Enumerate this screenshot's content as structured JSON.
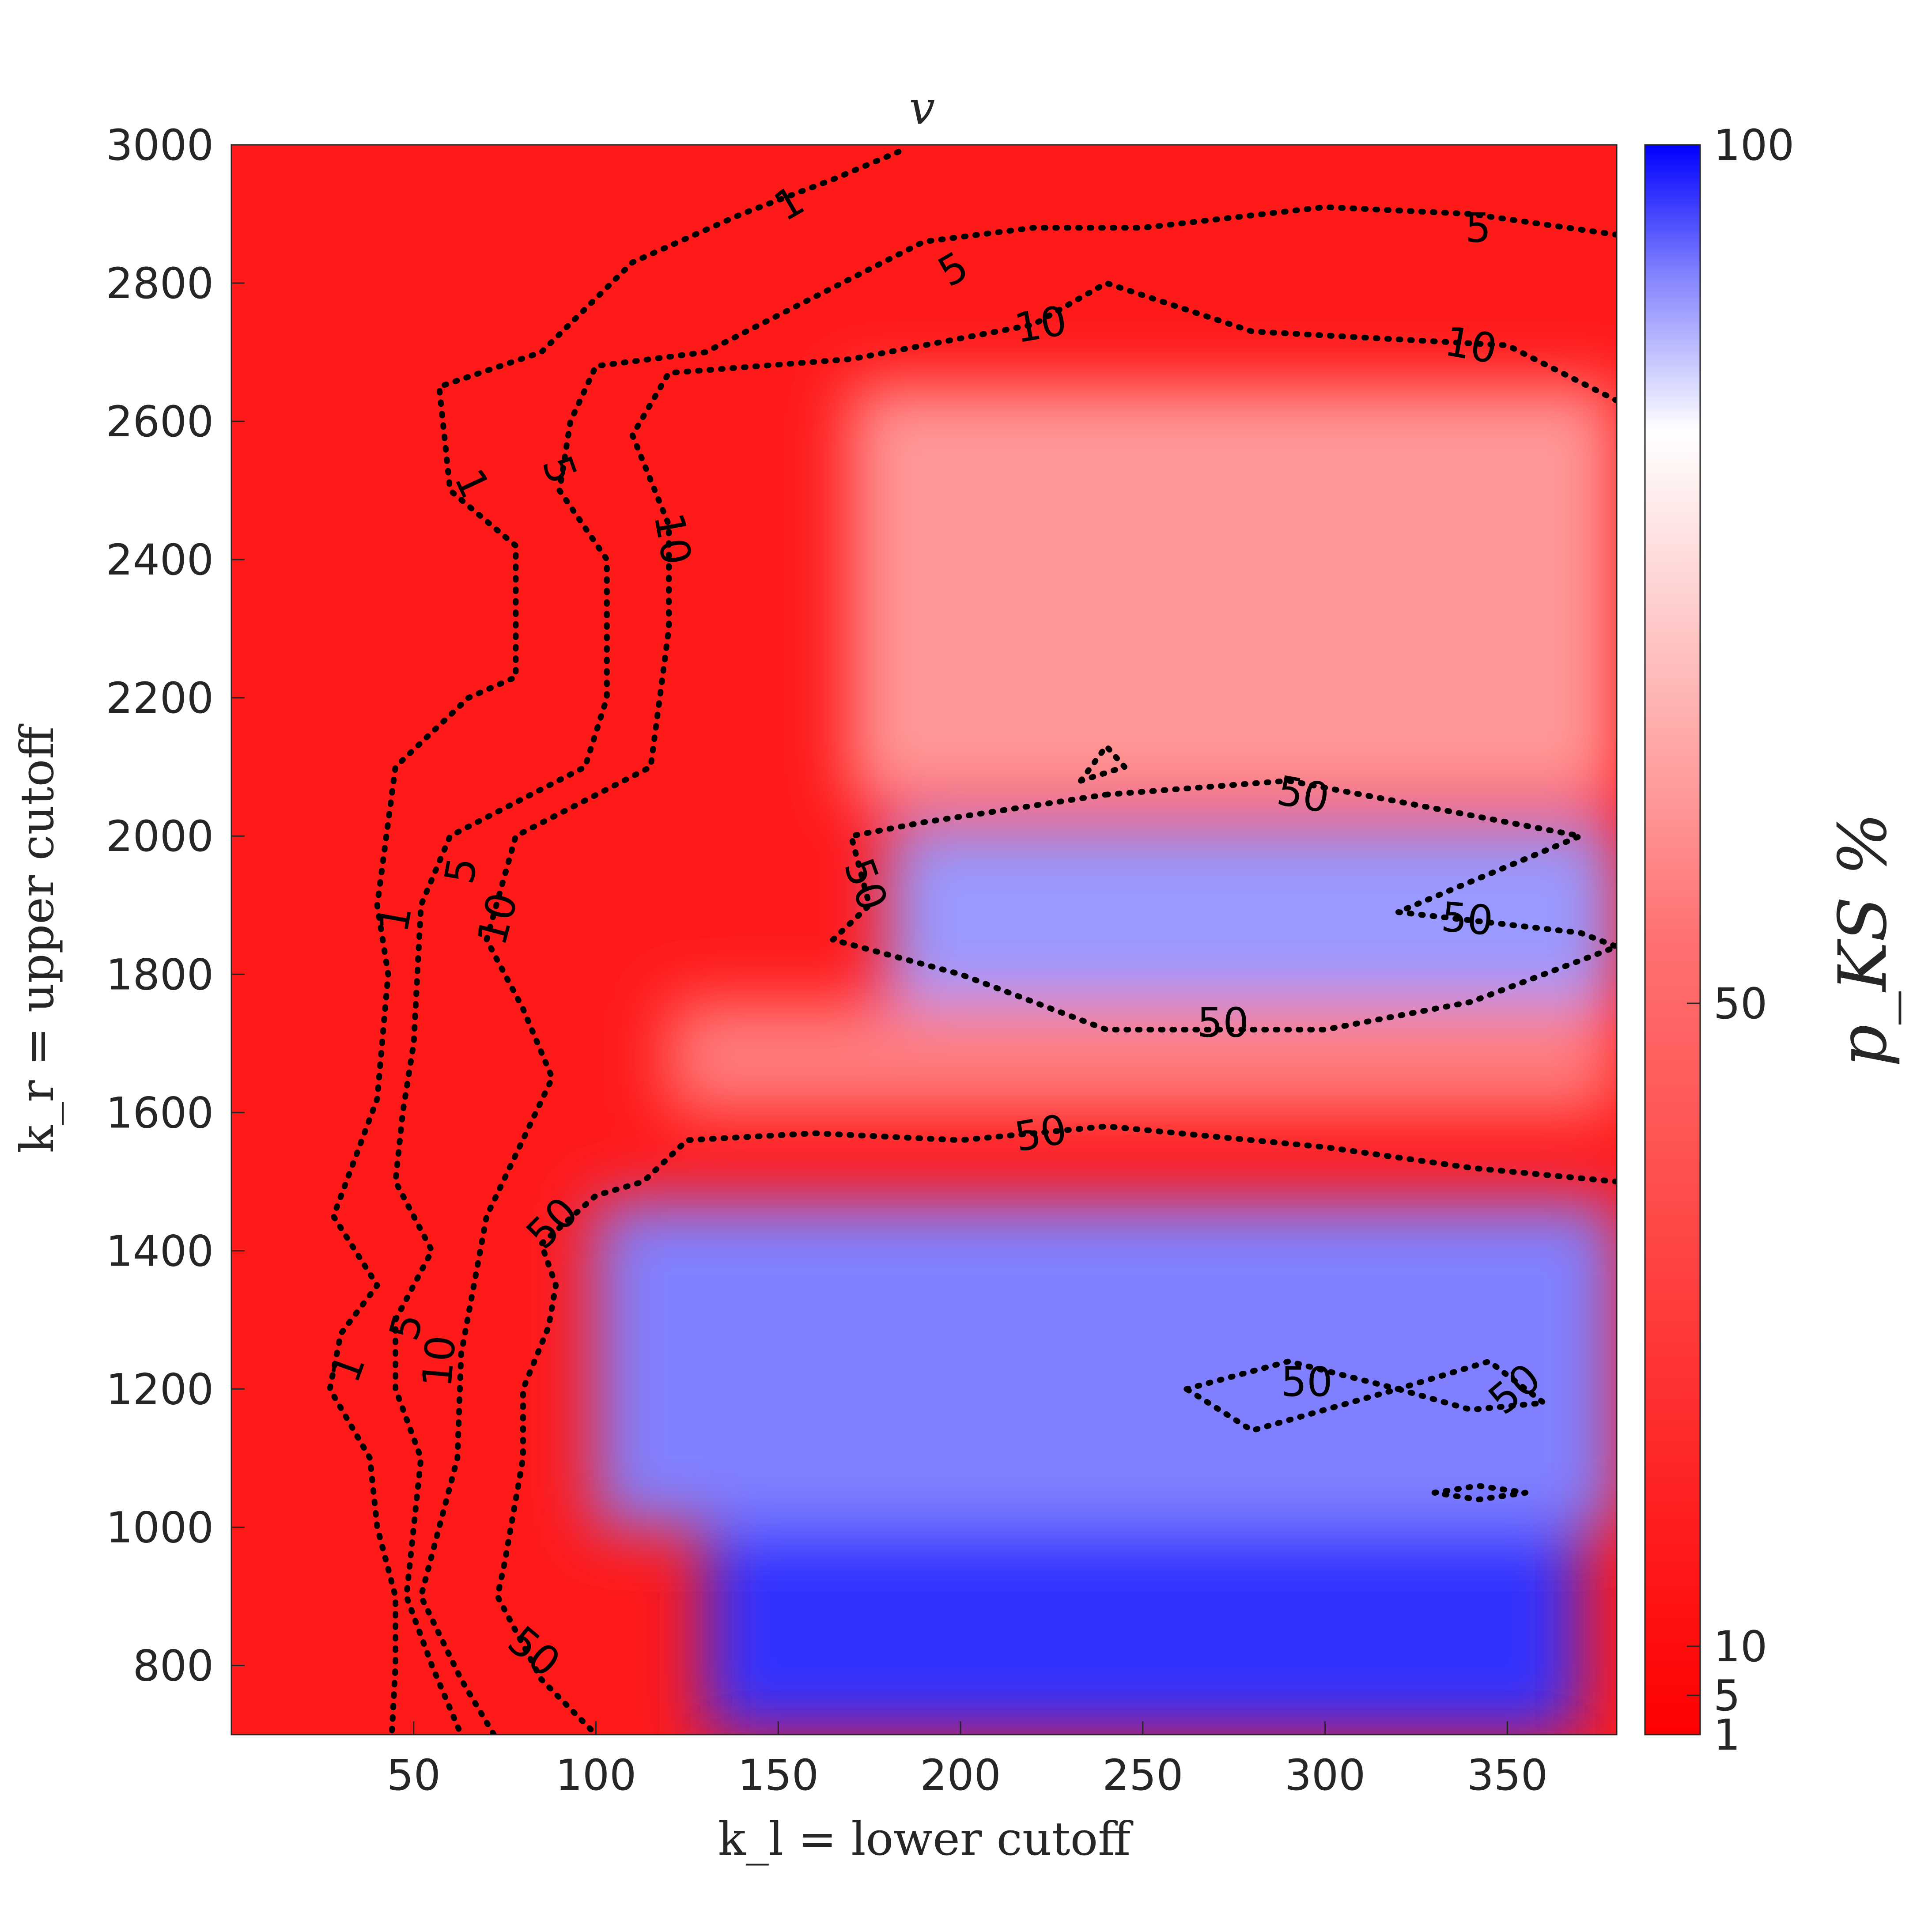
{
  "chart_data": {
    "type": "heatmap",
    "title": "v",
    "xlabel": "k_l = lower cutoff",
    "ylabel": "k_r = upper cutoff",
    "colorbar_label": "p_KS %",
    "xlim": [
      0,
      380
    ],
    "ylim": [
      700,
      3000
    ],
    "x_ticks": [
      50,
      100,
      150,
      200,
      250,
      300,
      350
    ],
    "y_ticks": [
      800,
      1000,
      1200,
      1400,
      1600,
      1800,
      2000,
      2200,
      2400,
      2600,
      2800,
      3000
    ],
    "colorbar_ticks": [
      1,
      5,
      10,
      50,
      100
    ],
    "colorbar_range": [
      1,
      100
    ],
    "colormap": {
      "low": "#ff0000",
      "mid": "#ffffff",
      "high": "#0000ff",
      "mid_value": 50
    },
    "grid": false,
    "contour_levels": [
      1,
      5,
      10,
      50
    ],
    "regions": [
      {
        "level": 100,
        "x": [
          100,
          380
        ],
        "y": [
          1380,
          1470
        ]
      },
      {
        "level": 90,
        "x": [
          130,
          370
        ],
        "y": [
          700,
          1000
        ]
      },
      {
        "level": 75,
        "x": [
          100,
          380
        ],
        "y": [
          1000,
          1470
        ]
      },
      {
        "level": 70,
        "x": [
          180,
          380
        ],
        "y": [
          1760,
          2020
        ]
      },
      {
        "level": 25,
        "x": [
          120,
          380
        ],
        "y": [
          1600,
          1760
        ]
      },
      {
        "level": 30,
        "x": [
          170,
          380
        ],
        "y": [
          2050,
          2650
        ]
      }
    ],
    "contours": [
      {
        "level": 1,
        "points": [
          [
            183,
            2990
          ],
          [
            165,
            2950
          ],
          [
            140,
            2900
          ],
          [
            110,
            2830
          ],
          [
            85,
            2700
          ],
          [
            57,
            2650
          ],
          [
            60,
            2500
          ],
          [
            78,
            2420
          ],
          [
            78,
            2230
          ],
          [
            65,
            2200
          ],
          [
            45,
            2100
          ],
          [
            40,
            1900
          ],
          [
            43,
            1800
          ],
          [
            40,
            1620
          ],
          [
            28,
            1450
          ],
          [
            40,
            1350
          ],
          [
            30,
            1280
          ],
          [
            27,
            1200
          ],
          [
            38,
            1100
          ],
          [
            40,
            1000
          ],
          [
            45,
            900
          ],
          [
            45,
            800
          ],
          [
            44,
            700
          ]
        ]
      },
      {
        "level": 5,
        "points": [
          [
            380,
            2870
          ],
          [
            340,
            2900
          ],
          [
            300,
            2910
          ],
          [
            250,
            2880
          ],
          [
            220,
            2880
          ],
          [
            190,
            2860
          ],
          [
            160,
            2780
          ],
          [
            130,
            2700
          ],
          [
            100,
            2680
          ],
          [
            93,
            2600
          ],
          [
            90,
            2500
          ],
          [
            103,
            2400
          ],
          [
            103,
            2200
          ],
          [
            97,
            2100
          ],
          [
            60,
            2000
          ],
          [
            52,
            1900
          ],
          [
            50,
            1700
          ],
          [
            47,
            1600
          ],
          [
            45,
            1500
          ],
          [
            55,
            1400
          ],
          [
            45,
            1300
          ],
          [
            45,
            1200
          ],
          [
            52,
            1100
          ],
          [
            48,
            900
          ],
          [
            55,
            800
          ],
          [
            63,
            700
          ]
        ]
      },
      {
        "level": 10,
        "points": [
          [
            380,
            2630
          ],
          [
            350,
            2710
          ],
          [
            280,
            2730
          ],
          [
            240,
            2800
          ],
          [
            220,
            2740
          ],
          [
            170,
            2690
          ],
          [
            120,
            2670
          ],
          [
            110,
            2580
          ],
          [
            120,
            2450
          ],
          [
            120,
            2300
          ],
          [
            115,
            2100
          ],
          [
            78,
            2000
          ],
          [
            70,
            1850
          ],
          [
            80,
            1750
          ],
          [
            88,
            1650
          ],
          [
            70,
            1450
          ],
          [
            63,
            1250
          ],
          [
            62,
            1100
          ],
          [
            52,
            900
          ],
          [
            63,
            780
          ],
          [
            72,
            700
          ]
        ]
      },
      {
        "level": 50,
        "points": [
          [
            380,
            1500
          ],
          [
            340,
            1520
          ],
          [
            300,
            1550
          ],
          [
            240,
            1580
          ],
          [
            200,
            1560
          ],
          [
            160,
            1570
          ],
          [
            125,
            1560
          ],
          [
            113,
            1500
          ],
          [
            100,
            1480
          ],
          [
            85,
            1410
          ],
          [
            89,
            1350
          ],
          [
            87,
            1290
          ],
          [
            80,
            1200
          ],
          [
            80,
            1100
          ],
          [
            75,
            950
          ],
          [
            73,
            900
          ],
          [
            85,
            780
          ],
          [
            100,
            700
          ]
        ]
      },
      {
        "level": 50,
        "closed": true,
        "points": [
          [
            240,
            2060
          ],
          [
            290,
            2080
          ],
          [
            340,
            2030
          ],
          [
            370,
            2000
          ],
          [
            320,
            1890
          ],
          [
            370,
            1860
          ],
          [
            380,
            1840
          ],
          [
            340,
            1760
          ],
          [
            300,
            1720
          ],
          [
            240,
            1720
          ],
          [
            200,
            1800
          ],
          [
            165,
            1850
          ],
          [
            175,
            1900
          ],
          [
            170,
            2000
          ],
          [
            190,
            2020
          ]
        ]
      },
      {
        "level": 50,
        "closed": true,
        "points": [
          [
            262,
            1200
          ],
          [
            290,
            1240
          ],
          [
            320,
            1200
          ],
          [
            345,
            1240
          ],
          [
            360,
            1180
          ],
          [
            340,
            1170
          ],
          [
            320,
            1200
          ],
          [
            280,
            1140
          ]
        ]
      },
      {
        "level": 50,
        "closed": true,
        "points": [
          [
            233,
            2080
          ],
          [
            240,
            2130
          ],
          [
            245,
            2100
          ]
        ]
      },
      {
        "level": 50,
        "closed": true,
        "points": [
          [
            330,
            1050
          ],
          [
            342,
            1060
          ],
          [
            355,
            1050
          ],
          [
            342,
            1040
          ]
        ]
      }
    ],
    "contour_labels": [
      {
        "level": 1,
        "text": "1",
        "x": 153,
        "y": 2915,
        "angle": -30
      },
      {
        "level": 5,
        "text": "5",
        "x": 198,
        "y": 2820,
        "angle": -30
      },
      {
        "level": 10,
        "text": "10",
        "x": 222,
        "y": 2740,
        "angle": -10
      },
      {
        "level": 5,
        "text": "5",
        "x": 342,
        "y": 2880,
        "angle": 0
      },
      {
        "level": 10,
        "text": "10",
        "x": 340,
        "y": 2710,
        "angle": 10
      },
      {
        "level": 1,
        "text": "1",
        "x": 66,
        "y": 2510,
        "angle": 65
      },
      {
        "level": 5,
        "text": "5",
        "x": 90,
        "y": 2530,
        "angle": 70
      },
      {
        "level": 10,
        "text": "10",
        "x": 121,
        "y": 2430,
        "angle": 80
      },
      {
        "level": 1,
        "text": "1",
        "x": 45,
        "y": 1880,
        "angle": -80
      },
      {
        "level": 5,
        "text": "5",
        "x": 63,
        "y": 1950,
        "angle": -80
      },
      {
        "level": 10,
        "text": "10",
        "x": 73,
        "y": 1880,
        "angle": -75
      },
      {
        "level": 1,
        "text": "1",
        "x": 32,
        "y": 1230,
        "angle": -70
      },
      {
        "level": 5,
        "text": "5",
        "x": 48,
        "y": 1290,
        "angle": -75
      },
      {
        "level": 10,
        "text": "10",
        "x": 57,
        "y": 1240,
        "angle": -85
      },
      {
        "level": 50,
        "text": "50",
        "x": 88,
        "y": 1440,
        "angle": -45
      },
      {
        "level": 50,
        "text": "50",
        "x": 83,
        "y": 820,
        "angle": 40
      },
      {
        "level": 50,
        "text": "50",
        "x": 174,
        "y": 1930,
        "angle": 70
      },
      {
        "level": 50,
        "text": "50",
        "x": 294,
        "y": 2060,
        "angle": 10
      },
      {
        "level": 50,
        "text": "50",
        "x": 339,
        "y": 1880,
        "angle": 5
      },
      {
        "level": 50,
        "text": "50",
        "x": 272,
        "y": 1730,
        "angle": 0
      },
      {
        "level": 50,
        "text": "50",
        "x": 222,
        "y": 1570,
        "angle": -10
      },
      {
        "level": 50,
        "text": "50",
        "x": 295,
        "y": 1210,
        "angle": 0
      },
      {
        "level": 50,
        "text": "50",
        "x": 352,
        "y": 1200,
        "angle": -40
      }
    ]
  }
}
